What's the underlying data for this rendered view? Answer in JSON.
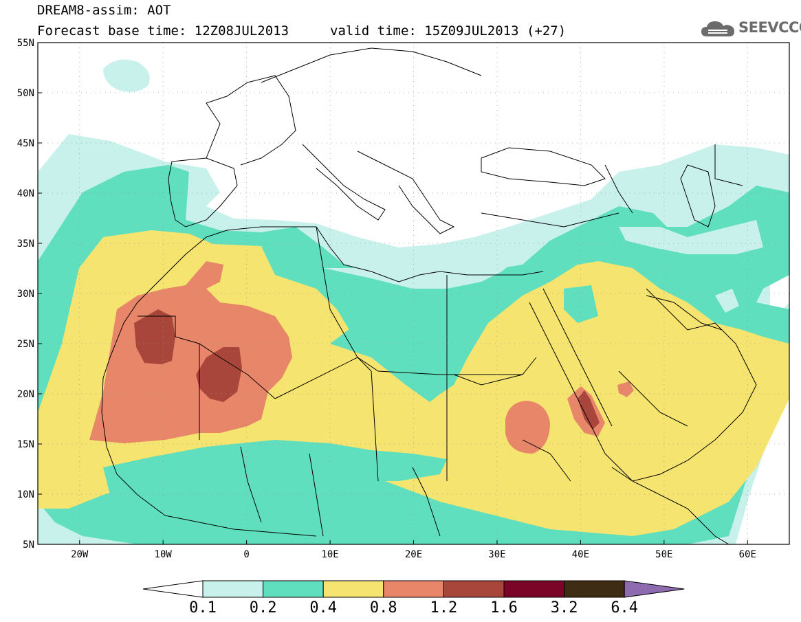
{
  "title": {
    "line1": "DREAM8-assim: AOT",
    "base_time": "Forecast base time: 12Z08JUL2013",
    "valid_time": "valid time: 15Z09JUL2013 (+27)"
  },
  "logo": {
    "text": "SEEVCCC",
    "icon": "cloud-icon"
  },
  "map": {
    "lon_range": [
      -25,
      65
    ],
    "lat_range": [
      5,
      55
    ],
    "lat_ticks": [
      {
        "value": 55,
        "label": "55N"
      },
      {
        "value": 50,
        "label": "50N"
      },
      {
        "value": 45,
        "label": "45N"
      },
      {
        "value": 40,
        "label": "40N"
      },
      {
        "value": 35,
        "label": "35N"
      },
      {
        "value": 30,
        "label": "30N"
      },
      {
        "value": 25,
        "label": "25N"
      },
      {
        "value": 20,
        "label": "20N"
      },
      {
        "value": 15,
        "label": "15N"
      },
      {
        "value": 10,
        "label": "10N"
      },
      {
        "value": 5,
        "label": "5N"
      }
    ],
    "lon_ticks": [
      {
        "value": -20,
        "label": "20W"
      },
      {
        "value": -10,
        "label": "10W"
      },
      {
        "value": 0,
        "label": "0"
      },
      {
        "value": 10,
        "label": "10E"
      },
      {
        "value": 20,
        "label": "20E"
      },
      {
        "value": 30,
        "label": "30E"
      },
      {
        "value": 40,
        "label": "40E"
      },
      {
        "value": 50,
        "label": "50E"
      },
      {
        "value": 60,
        "label": "60E"
      }
    ],
    "grid": true
  },
  "colorbar": {
    "labels": [
      "0.1",
      "0.2",
      "0.4",
      "0.8",
      "1.2",
      "1.6",
      "3.2",
      "6.4"
    ],
    "colors": [
      "#ffffff",
      "#c9f1ec",
      "#5fdfbe",
      "#f5e46f",
      "#e8866a",
      "#a8463b",
      "#7a0526",
      "#3f2c14",
      "#8e6bb1"
    ]
  }
}
